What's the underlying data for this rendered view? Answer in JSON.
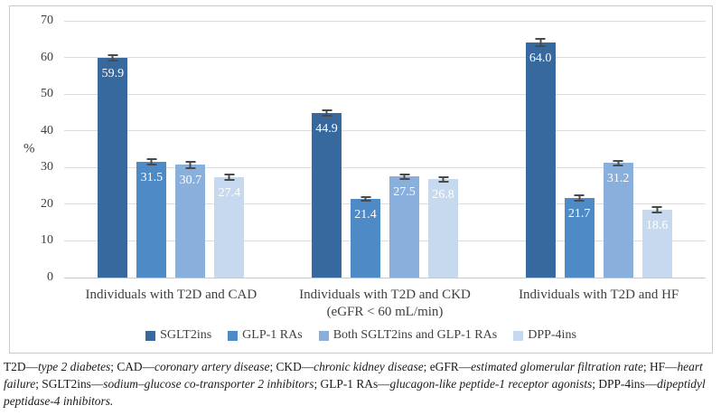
{
  "chart_data": {
    "type": "bar",
    "title": "",
    "ylabel": "%",
    "xlabel": "",
    "ylim": [
      0,
      70
    ],
    "yticks": [
      0,
      10,
      20,
      30,
      40,
      50,
      60,
      70
    ],
    "grid": true,
    "legend_position": "bottom",
    "value_labels": "inside-end, one decimal, white",
    "error_bars": "both directions with caps",
    "categories": [
      "Individuals with T2D and CAD",
      "Individuals with T2D and CKD (eGFR < 60 mL/min)",
      "Individuals with T2D and HF"
    ],
    "category_lines": [
      [
        "Individuals with T2D and CAD"
      ],
      [
        "Individuals with T2D and CKD",
        "(eGFR < 60 mL/min)"
      ],
      [
        "Individuals with T2D and HF"
      ]
    ],
    "series": [
      {
        "name": "SGLT2ins",
        "color": "#38699E",
        "values": [
          59.9,
          44.9,
          64.0
        ],
        "errors": [
          1.1,
          1.0,
          1.2
        ]
      },
      {
        "name": "GLP-1 RAs",
        "color": "#4E8AC6",
        "values": [
          31.5,
          21.4,
          21.7
        ],
        "errors": [
          1.0,
          0.8,
          0.9
        ]
      },
      {
        "name": "Both SGLT2ins and GLP-1 RAs",
        "color": "#89AFDC",
        "values": [
          30.7,
          27.5,
          31.2
        ],
        "errors": [
          1.0,
          0.9,
          0.9
        ]
      },
      {
        "name": "DPP-4ins",
        "color": "#C7D9EE",
        "values": [
          27.4,
          26.8,
          18.6
        ],
        "errors": [
          1.0,
          0.9,
          1.0
        ]
      }
    ],
    "colors": {
      "gridline": "#dcdcdc",
      "axis_line": "#c9c9c9",
      "error_bar": "#4a4a4a",
      "frame_border": "#cbcbcb",
      "axis_text": "#3f3f3f",
      "bar_label_text": "#ffffff"
    }
  },
  "caption": {
    "segments": [
      {
        "text": "T2D—",
        "italic": false
      },
      {
        "text": "type 2 diabetes",
        "italic": true
      },
      {
        "text": "; CAD—",
        "italic": false
      },
      {
        "text": "coronary artery disease",
        "italic": true
      },
      {
        "text": "; CKD—",
        "italic": false
      },
      {
        "text": "chronic kidney disease",
        "italic": true
      },
      {
        "text": "; eGFR—",
        "italic": false
      },
      {
        "text": "estimated glomerular filtration rate",
        "italic": true
      },
      {
        "text": "; HF—",
        "italic": false
      },
      {
        "text": "heart failure",
        "italic": true
      },
      {
        "text": "; SGLT2ins—",
        "italic": false
      },
      {
        "text": "sodium–glucose co-transporter 2 inhibitors",
        "italic": true
      },
      {
        "text": "; GLP-1 RAs—",
        "italic": false
      },
      {
        "text": "glucagon-like peptide-1 receptor agonists",
        "italic": true
      },
      {
        "text": "; DPP-4ins—",
        "italic": false
      },
      {
        "text": "dipeptidyl peptidase-4 inhibitors.",
        "italic": true
      }
    ]
  }
}
